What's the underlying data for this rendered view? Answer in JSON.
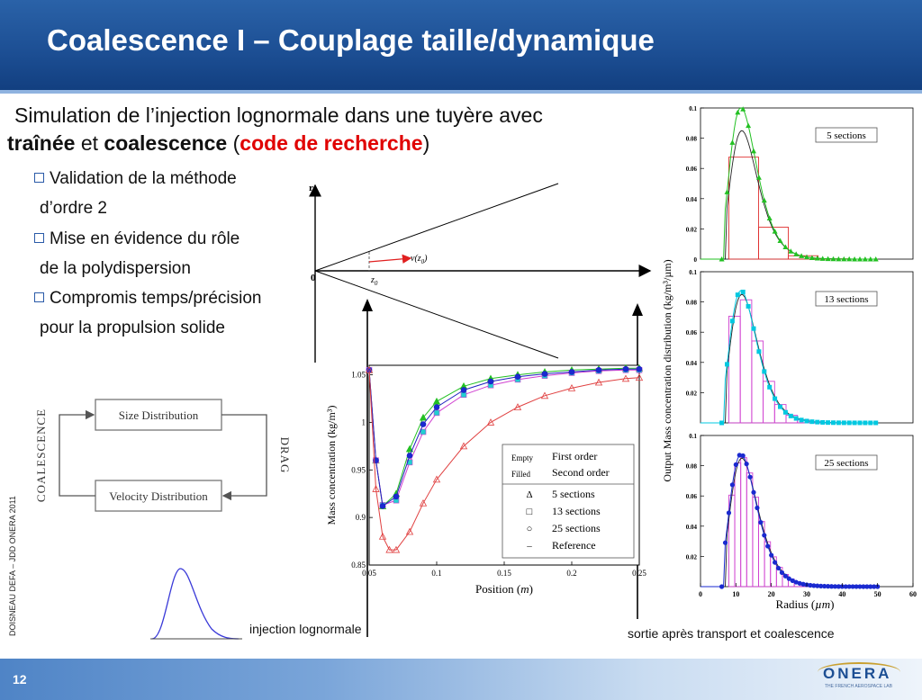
{
  "slide": {
    "title": "Coalescence I   – Couplage taille/dynamique",
    "subtitle_line1": "Simulation de l’injection lognormale dans une tuyère avec",
    "subtitle_line2": {
      "w1": "traînée",
      "w2": " et ",
      "w3": "coalescence",
      "w4": " (",
      "w5": "code de recherche",
      "w6": ")"
    },
    "bullets": [
      {
        "l1": "Validation de la méthode",
        "l2": "d’ordre 2"
      },
      {
        "l1": "Mise en évidence du rôle",
        "l2": "de la polydispersion"
      },
      {
        "l1": "Compromis temps/précision",
        "l2": "pour la propulsion solide"
      }
    ],
    "side_note": "DOISNEAU DEFA – JDD ONERA 2011",
    "page_number": "12",
    "caption_left": "injection lognormale",
    "caption_right": "sortie après transport et coalescence",
    "logo": {
      "name": "ONERA",
      "tagline": "THE FRENCH AEROSPACE LAB"
    }
  },
  "diagram": {
    "box_top": "Size Distribution",
    "box_bottom": "Velocity Distribution",
    "left_label": "COALESCENCE",
    "right_label": "DRAG"
  },
  "nozzle": {
    "r_label": "r",
    "o_label": "0",
    "z_label": "z",
    "z_sub": "0",
    "v_label": "v(z",
    "v_sub": "0",
    "v_close": ")"
  },
  "chart_data": [
    {
      "type": "line",
      "xlabel_main": "Position (",
      "xlabel_unit": "m",
      "xlabel_close": ")",
      "ylabel": "Mass concentration (kg/m³)",
      "xlim": [
        0.05,
        0.25
      ],
      "ylim": [
        0.85,
        1.06
      ],
      "x_ticks": [
        "0.05",
        "0.1",
        "0.15",
        "0.2",
        "0.25"
      ],
      "y_ticks": [
        "0.85",
        "0.9",
        "0.95",
        "1",
        "1.05"
      ],
      "legend": {
        "empty": "Empty",
        "filled": "Filled",
        "first_order": "First order",
        "second_order": "Second order",
        "entries": [
          {
            "symbol": "Δ",
            "label": "5 sections"
          },
          {
            "symbol": "□",
            "label": "13 sections"
          },
          {
            "symbol": "○",
            "label": "25 sections"
          },
          {
            "symbol": "–",
            "label": "Reference"
          }
        ]
      },
      "series": [
        {
          "x": [
            0.05,
            0.055,
            0.06,
            0.07,
            0.08,
            0.09,
            0.1,
            0.12,
            0.14,
            0.16,
            0.18,
            0.2,
            0.22,
            0.24,
            0.25
          ],
          "y": [
            1.055,
            0.96,
            0.912,
            0.925,
            0.972,
            1.005,
            1.022,
            1.038,
            1.046,
            1.05,
            1.053,
            1.055,
            1.056,
            1.057,
            1.057
          ]
        },
        {
          "x": [
            0.05,
            0.055,
            0.06,
            0.07,
            0.08,
            0.09,
            0.1,
            0.12,
            0.14,
            0.16,
            0.18,
            0.2,
            0.22,
            0.24,
            0.25
          ],
          "y": [
            1.055,
            0.96,
            0.913,
            0.918,
            0.958,
            0.99,
            1.01,
            1.029,
            1.039,
            1.045,
            1.049,
            1.052,
            1.054,
            1.055,
            1.055
          ]
        },
        {
          "x": [
            0.05,
            0.055,
            0.06,
            0.07,
            0.08,
            0.09,
            0.1,
            0.12,
            0.14,
            0.16,
            0.18,
            0.2,
            0.22,
            0.24,
            0.25
          ],
          "y": [
            1.055,
            0.96,
            0.912,
            0.922,
            0.965,
            0.998,
            1.016,
            1.034,
            1.043,
            1.048,
            1.051,
            1.053,
            1.055,
            1.056,
            1.056
          ]
        },
        {
          "x": [
            0.05,
            0.055,
            0.06,
            0.065,
            0.07,
            0.08,
            0.09,
            0.1,
            0.12,
            0.14,
            0.16,
            0.18,
            0.2,
            0.22,
            0.24,
            0.25
          ],
          "y": [
            1.055,
            0.93,
            0.88,
            0.866,
            0.866,
            0.885,
            0.915,
            0.94,
            0.975,
            1.0,
            1.016,
            1.028,
            1.036,
            1.042,
            1.046,
            1.047
          ]
        }
      ]
    },
    {
      "type": "bar",
      "ylabel": "Output Mass concentration distribution (kg/m³/µm)",
      "xlabel_main": "Radius (",
      "xlabel_unit": "µm",
      "xlabel_close": ")",
      "xlim": [
        0,
        60
      ],
      "x_ticks": [
        "0",
        "10",
        "20",
        "30",
        "40",
        "50",
        "60"
      ],
      "y_ticks_panel": [
        "0.1",
        "0.08",
        "0.06",
        "0.04",
        "0.02",
        "0"
      ],
      "panels": [
        {
          "label": "5 sections",
          "reference_peak": 0.085
        },
        {
          "label": "13 sections",
          "reference_peak": 0.085
        },
        {
          "label": "25 sections",
          "reference_peak": 0.085
        }
      ]
    }
  ]
}
